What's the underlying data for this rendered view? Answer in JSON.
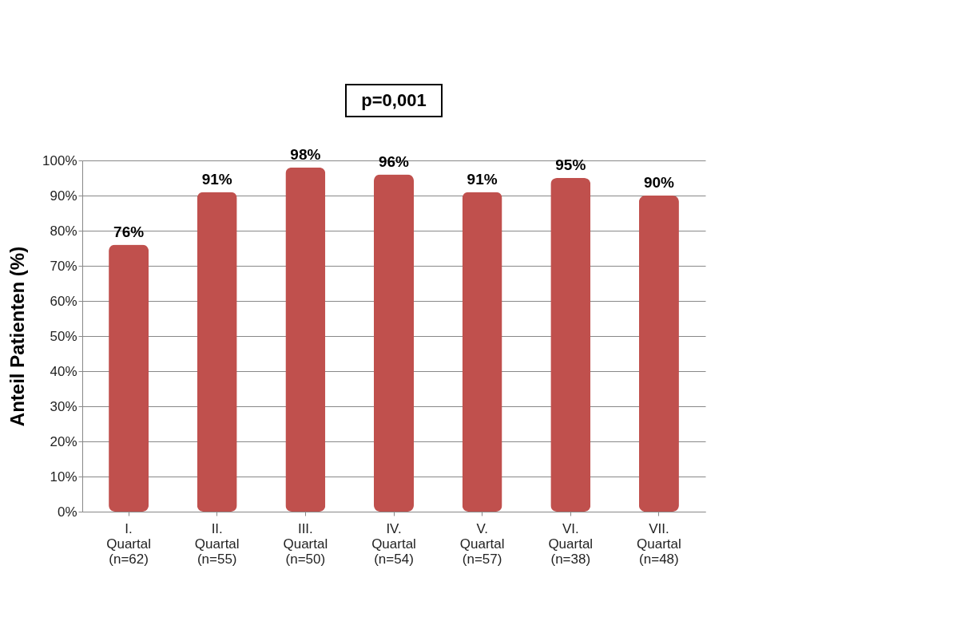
{
  "chart_data": {
    "type": "bar",
    "categories": [
      "I.\nQuartal\n(n=62)",
      "II.\nQuartal\n(n=55)",
      "III.\nQuartal\n(n=50)",
      "IV.\nQuartal\n(n=54)",
      "V.\nQuartal\n(n=57)",
      "VI.\nQuartal\n(n=38)",
      "VII.\nQuartal\n(n=48)"
    ],
    "values": [
      76,
      91,
      98,
      96,
      91,
      95,
      90
    ],
    "value_labels": [
      "76%",
      "91%",
      "98%",
      "96%",
      "91%",
      "95%",
      "90%"
    ],
    "color": "#c0504d",
    "ylabel": "Anteil Patienten (%)",
    "ylim": [
      0,
      100
    ],
    "yticks": [
      {
        "value": 0,
        "label": "0%"
      },
      {
        "value": 10,
        "label": "10%"
      },
      {
        "value": 20,
        "label": "20%"
      },
      {
        "value": 30,
        "label": "30%"
      },
      {
        "value": 40,
        "label": "40%"
      },
      {
        "value": 50,
        "label": "50%"
      },
      {
        "value": 60,
        "label": "60%"
      },
      {
        "value": 70,
        "label": "70%"
      },
      {
        "value": 80,
        "label": "80%"
      },
      {
        "value": 90,
        "label": "90%"
      },
      {
        "value": 100,
        "label": "100%"
      }
    ],
    "annotations": [
      "p=0,001"
    ],
    "grid": "y"
  }
}
